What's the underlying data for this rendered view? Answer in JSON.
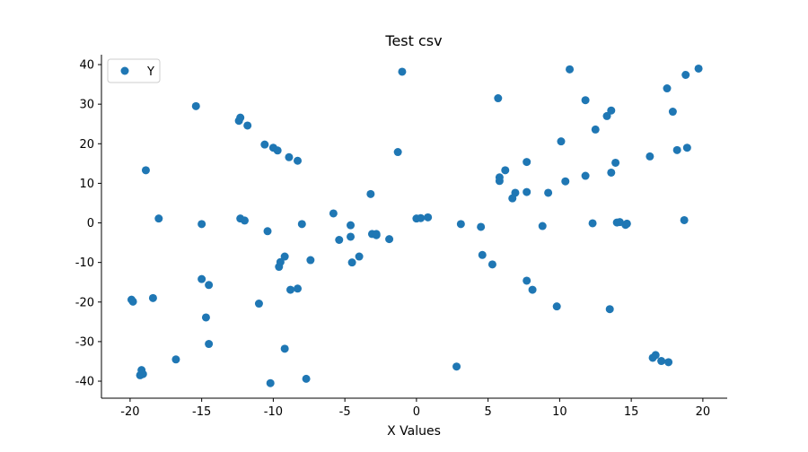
{
  "chart_data": {
    "type": "scatter",
    "title": "Test csv",
    "xlabel": "X Values",
    "ylabel": "",
    "xlim": [
      -22,
      21.7
    ],
    "ylim": [
      -44.3,
      42.5
    ],
    "xticks": [
      -20,
      -15,
      -10,
      -5,
      0,
      5,
      10,
      15,
      20
    ],
    "yticks": [
      -40,
      -30,
      -20,
      -10,
      0,
      10,
      20,
      30,
      40
    ],
    "grid": false,
    "legend_position": "top-left",
    "series": [
      {
        "name": "Y",
        "color": "#1f77b4",
        "points": [
          [
            -19.9,
            -19.4
          ],
          [
            -19.8,
            -19.9
          ],
          [
            -19.3,
            -38.5
          ],
          [
            -19.2,
            -37.2
          ],
          [
            -19.1,
            -38.2
          ],
          [
            -18.9,
            13.3
          ],
          [
            -18.4,
            -19.0
          ],
          [
            -18.0,
            1.1
          ],
          [
            -16.8,
            -34.5
          ],
          [
            -15.4,
            29.5
          ],
          [
            -15.0,
            -0.3
          ],
          [
            -15.0,
            -14.2
          ],
          [
            -14.7,
            -23.9
          ],
          [
            -14.5,
            -30.6
          ],
          [
            -14.5,
            -15.7
          ],
          [
            -12.4,
            25.8
          ],
          [
            -12.3,
            26.6
          ],
          [
            -12.3,
            1.1
          ],
          [
            -12.0,
            0.6
          ],
          [
            -11.8,
            24.6
          ],
          [
            -11.0,
            -20.4
          ],
          [
            -10.6,
            19.8
          ],
          [
            -10.4,
            -2.1
          ],
          [
            -10.2,
            -40.5
          ],
          [
            -10.0,
            19.0
          ],
          [
            -9.7,
            18.3
          ],
          [
            -9.6,
            -11.1
          ],
          [
            -9.5,
            -9.9
          ],
          [
            -9.2,
            -8.5
          ],
          [
            -9.2,
            -31.8
          ],
          [
            -8.9,
            16.6
          ],
          [
            -8.8,
            -16.9
          ],
          [
            -8.3,
            15.7
          ],
          [
            -8.3,
            -16.6
          ],
          [
            -8.0,
            -0.3
          ],
          [
            -7.7,
            -39.4
          ],
          [
            -7.4,
            -9.4
          ],
          [
            -5.8,
            2.4
          ],
          [
            -5.4,
            -4.3
          ],
          [
            -4.6,
            -0.6
          ],
          [
            -4.6,
            -3.5
          ],
          [
            -4.5,
            -10.0
          ],
          [
            -4.0,
            -8.5
          ],
          [
            -3.2,
            7.3
          ],
          [
            -3.1,
            -2.8
          ],
          [
            -2.8,
            -3.1
          ],
          [
            -2.8,
            -2.8
          ],
          [
            -1.9,
            -4.1
          ],
          [
            -1.3,
            17.9
          ],
          [
            -1.0,
            38.2
          ],
          [
            0.0,
            1.1
          ],
          [
            0.3,
            1.2
          ],
          [
            0.8,
            1.4
          ],
          [
            2.8,
            -36.3
          ],
          [
            3.1,
            -0.3
          ],
          [
            4.5,
            -1.0
          ],
          [
            4.6,
            -8.1
          ],
          [
            5.3,
            -10.5
          ],
          [
            5.7,
            31.5
          ],
          [
            5.8,
            11.5
          ],
          [
            5.8,
            10.6
          ],
          [
            6.2,
            13.3
          ],
          [
            6.7,
            6.2
          ],
          [
            6.9,
            7.6
          ],
          [
            7.7,
            15.4
          ],
          [
            7.7,
            7.8
          ],
          [
            7.7,
            -14.6
          ],
          [
            8.1,
            -16.9
          ],
          [
            8.8,
            -0.8
          ],
          [
            9.2,
            7.6
          ],
          [
            9.8,
            -21.1
          ],
          [
            10.1,
            20.6
          ],
          [
            10.4,
            10.5
          ],
          [
            10.7,
            38.8
          ],
          [
            11.8,
            31.0
          ],
          [
            11.8,
            11.9
          ],
          [
            12.3,
            -0.1
          ],
          [
            12.5,
            23.6
          ],
          [
            13.3,
            27.0
          ],
          [
            13.5,
            -21.8
          ],
          [
            13.6,
            28.4
          ],
          [
            13.6,
            12.7
          ],
          [
            13.9,
            15.2
          ],
          [
            14.0,
            0.1
          ],
          [
            14.2,
            0.2
          ],
          [
            14.6,
            -0.5
          ],
          [
            14.7,
            -0.2
          ],
          [
            16.3,
            16.8
          ],
          [
            16.5,
            -34.1
          ],
          [
            16.7,
            -33.4
          ],
          [
            17.1,
            -34.9
          ],
          [
            17.5,
            34.0
          ],
          [
            17.6,
            -35.2
          ],
          [
            17.9,
            28.1
          ],
          [
            18.2,
            18.4
          ],
          [
            18.7,
            0.7
          ],
          [
            18.8,
            37.4
          ],
          [
            18.9,
            19.0
          ],
          [
            19.7,
            39.0
          ]
        ]
      }
    ]
  }
}
